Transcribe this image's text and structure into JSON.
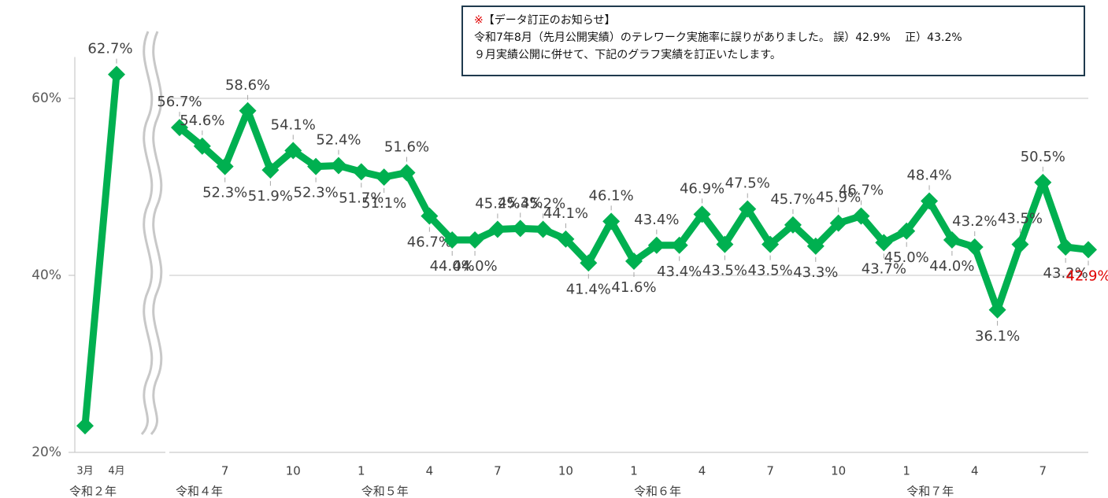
{
  "notice": {
    "mark": "※",
    "title": "【データ訂正のお知らせ】",
    "lines": [
      "令和7年8月（先月公開実績）のテレワーク実施率に誤りがありました。 誤）42.9%　 正）43.2%",
      "９月実績公開に併せて、下記のグラフ実績を訂正いたします。"
    ]
  },
  "chart_data": [
    {
      "type": "line",
      "categories": [
        "3月",
        "4月"
      ],
      "values": [
        23,
        62.7
      ],
      "value_labels": [
        null,
        "62.7%"
      ],
      "year_labels": [
        "令和２年"
      ],
      "color": "#00b050",
      "ylim": [
        20,
        70
      ],
      "yticks": [
        {
          "value": 20,
          "label": "20%"
        },
        {
          "value": 40,
          "label": "40%"
        },
        {
          "value": 60,
          "label": "60%"
        }
      ]
    },
    {
      "type": "line",
      "categories": [
        null,
        null,
        "7",
        null,
        null,
        "10",
        null,
        null,
        "1",
        null,
        null,
        "4",
        null,
        null,
        "7",
        null,
        null,
        "10",
        null,
        null,
        "1",
        null,
        null,
        "4",
        null,
        null,
        "7",
        null,
        null,
        "10",
        null,
        null,
        "1",
        null,
        null,
        "4",
        null,
        null,
        "7",
        null,
        null
      ],
      "values": [
        56.7,
        54.6,
        52.3,
        58.6,
        51.9,
        54.1,
        52.3,
        52.4,
        51.7,
        51.1,
        51.6,
        46.7,
        44.0,
        44.0,
        45.2,
        45.3,
        45.2,
        44.1,
        41.4,
        46.1,
        41.6,
        43.4,
        43.4,
        46.9,
        43.5,
        47.5,
        43.5,
        45.7,
        43.3,
        45.9,
        46.7,
        43.7,
        45.0,
        48.4,
        44.0,
        43.2,
        36.1,
        43.5,
        50.5,
        43.2,
        42.9
      ],
      "value_labels": [
        "56.7%",
        "54.6%",
        "52.3%",
        "58.6%",
        "51.9%",
        "54.1%",
        "52.3%",
        "52.4%",
        "51.7%",
        "51.1%",
        "51.6%",
        "46.7%",
        "44.0%",
        "44.0%",
        "45.2%",
        "45.3%",
        "45.2%",
        "44.1%",
        "41.4%",
        "46.1%",
        "41.6%",
        "43.4%",
        "43.4%",
        "46.9%",
        "43.5%",
        "47.5%",
        "43.5%",
        "45.7%",
        "43.3%",
        "45.9%",
        "46.7%",
        "43.7%",
        "45.0%",
        "48.4%",
        "44.0%",
        "43.2%",
        "36.1%",
        "43.5%",
        "50.5%",
        "43.2%",
        "42.9%"
      ],
      "year_labels": [
        "令和４年",
        "令和５年",
        "令和６年",
        "令和７年"
      ],
      "color": "#00b050",
      "last_label_color": "#e00000",
      "ylim": [
        20,
        70
      ],
      "yticks": [
        {
          "value": 20,
          "label": "20%"
        },
        {
          "value": 40,
          "label": "40%"
        },
        {
          "value": 60,
          "label": "60%"
        }
      ],
      "grid": true
    }
  ]
}
